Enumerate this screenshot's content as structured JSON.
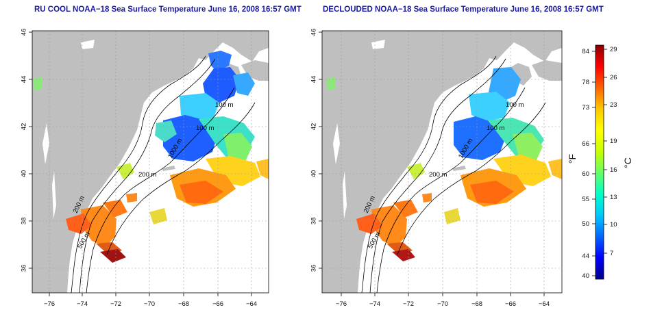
{
  "maps": [
    {
      "title": "RU COOL NOAA−18 Sea Surface Temperature June 16, 2008 16:57 GMT",
      "x_ticks": [
        "−76",
        "−74",
        "−72",
        "−70",
        "−68",
        "−66",
        "−64"
      ],
      "y_ticks": [
        "36",
        "38",
        "40",
        "42",
        "44",
        "46"
      ],
      "contour_labels": [
        "100 m",
        "100 m",
        "200 m",
        "200 m",
        "1000 m",
        "500 m"
      ]
    },
    {
      "title": "DECLOUDED NOAA−18 Sea Surface Temperature June 16, 2008 16:57 GMT",
      "x_ticks": [
        "−76",
        "−74",
        "−72",
        "−70",
        "−68",
        "−66",
        "−64"
      ],
      "y_ticks": [
        "36",
        "38",
        "40",
        "42",
        "44",
        "46"
      ],
      "contour_labels": [
        "100 m",
        "100 m",
        "200 m",
        "200 m",
        "1000 m",
        "500 m"
      ]
    }
  ],
  "colorbar": {
    "fahrenheit_labels": [
      "84",
      "78",
      "73",
      "66",
      "60",
      "55",
      "50",
      "44",
      "40"
    ],
    "celsius_labels": [
      "29",
      "26",
      "23",
      "19",
      "16",
      "13",
      "10",
      "7"
    ],
    "fahrenheit_unit": "°F",
    "celsius_unit": "°C",
    "colors": [
      "#00008b",
      "#0000ff",
      "#0064ff",
      "#00c8ff",
      "#00ffc8",
      "#64ff64",
      "#c8ff00",
      "#ffff00",
      "#ffc800",
      "#ff6400",
      "#ff0000",
      "#8b0000"
    ]
  },
  "colors": {
    "land": "#bfbfbf",
    "ocean": "#ffffff",
    "title": "#1a1aa6"
  }
}
